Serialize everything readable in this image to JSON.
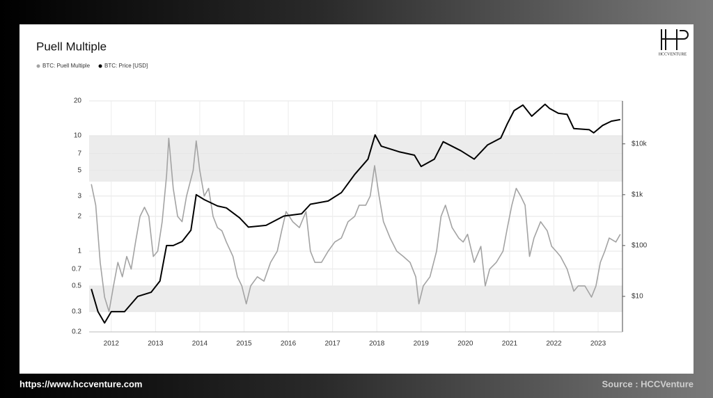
{
  "brand": "HCCVENTURE",
  "footer": {
    "url": "https://www.hccventure.com",
    "source": "Source : HCCVenture"
  },
  "chart_data": {
    "type": "line",
    "title": "Puell Multiple",
    "log_scale": true,
    "grid": true,
    "bands": [
      [
        0.3,
        0.5
      ],
      [
        4,
        10
      ]
    ],
    "xlim": [
      2011.5,
      2023.55
    ],
    "xticks": [
      2012,
      2013,
      2014,
      2015,
      2016,
      2017,
      2018,
      2019,
      2020,
      2021,
      2022,
      2023
    ],
    "ylim": [
      0.2,
      20
    ],
    "yticks": [
      0.2,
      0.3,
      0.5,
      0.7,
      1,
      2,
      3,
      5,
      7,
      10,
      20
    ],
    "y2lim": [
      2,
      70000
    ],
    "y2ticks": [
      {
        "value": 10,
        "label": "$10"
      },
      {
        "value": 100,
        "label": "$100"
      },
      {
        "value": 1000,
        "label": "$1k"
      },
      {
        "value": 10000,
        "label": "$10k"
      }
    ],
    "series": [
      {
        "name": "BTC: Puell Multiple",
        "color": "#a3a3a3",
        "x": [
          2011.55,
          2011.65,
          2011.75,
          2011.85,
          2011.95,
          2012.05,
          2012.15,
          2012.25,
          2012.35,
          2012.45,
          2012.55,
          2012.65,
          2012.75,
          2012.85,
          2012.95,
          2013.05,
          2013.15,
          2013.25,
          2013.3,
          2013.4,
          2013.5,
          2013.6,
          2013.7,
          2013.85,
          2013.92,
          2014.0,
          2014.1,
          2014.2,
          2014.3,
          2014.4,
          2014.5,
          2014.6,
          2014.75,
          2014.85,
          2014.95,
          2015.05,
          2015.15,
          2015.3,
          2015.45,
          2015.6,
          2015.75,
          2015.85,
          2015.95,
          2016.1,
          2016.25,
          2016.4,
          2016.5,
          2016.6,
          2016.75,
          2016.9,
          2017.05,
          2017.2,
          2017.35,
          2017.5,
          2017.6,
          2017.75,
          2017.85,
          2017.95,
          2018.05,
          2018.15,
          2018.3,
          2018.45,
          2018.6,
          2018.75,
          2018.88,
          2018.95,
          2019.05,
          2019.2,
          2019.35,
          2019.45,
          2019.55,
          2019.7,
          2019.85,
          2019.95,
          2020.05,
          2020.2,
          2020.35,
          2020.45,
          2020.55,
          2020.7,
          2020.85,
          2020.95,
          2021.05,
          2021.15,
          2021.25,
          2021.35,
          2021.45,
          2021.55,
          2021.7,
          2021.85,
          2021.95,
          2022.05,
          2022.15,
          2022.3,
          2022.45,
          2022.55,
          2022.7,
          2022.85,
          2022.95,
          2023.05,
          2023.15,
          2023.25,
          2023.4,
          2023.5
        ],
        "values": [
          3.8,
          2.5,
          0.8,
          0.4,
          0.3,
          0.5,
          0.8,
          0.6,
          0.9,
          0.7,
          1.2,
          2.0,
          2.4,
          2.0,
          0.9,
          1.0,
          1.8,
          4.5,
          9.5,
          3.5,
          2.0,
          1.8,
          3.0,
          5.0,
          9.0,
          5.0,
          3.0,
          3.5,
          2.0,
          1.6,
          1.5,
          1.2,
          0.9,
          0.6,
          0.5,
          0.35,
          0.5,
          0.6,
          0.55,
          0.8,
          1.0,
          1.5,
          2.2,
          1.8,
          1.6,
          2.2,
          1.0,
          0.8,
          0.8,
          1.0,
          1.2,
          1.3,
          1.8,
          2.0,
          2.5,
          2.5,
          3.0,
          5.5,
          3.0,
          1.8,
          1.3,
          1.0,
          0.9,
          0.8,
          0.6,
          0.35,
          0.5,
          0.6,
          1.0,
          2.0,
          2.5,
          1.6,
          1.3,
          1.2,
          1.4,
          0.8,
          1.1,
          0.5,
          0.7,
          0.8,
          1.0,
          1.6,
          2.5,
          3.5,
          3.0,
          2.5,
          0.9,
          1.3,
          1.8,
          1.5,
          1.1,
          1.0,
          0.9,
          0.7,
          0.45,
          0.5,
          0.5,
          0.4,
          0.5,
          0.8,
          1.0,
          1.3,
          1.2,
          1.4
        ]
      },
      {
        "name": "BTC: Price [USD]",
        "color": "#000000",
        "axis": "y2",
        "x": [
          2011.55,
          2011.7,
          2011.85,
          2012.0,
          2012.3,
          2012.6,
          2012.9,
          2013.1,
          2013.25,
          2013.4,
          2013.6,
          2013.8,
          2013.92,
          2014.1,
          2014.4,
          2014.6,
          2014.9,
          2015.1,
          2015.5,
          2015.9,
          2016.3,
          2016.5,
          2016.9,
          2017.2,
          2017.5,
          2017.8,
          2017.96,
          2018.1,
          2018.5,
          2018.85,
          2019.0,
          2019.3,
          2019.5,
          2019.9,
          2020.2,
          2020.5,
          2020.8,
          2020.95,
          2021.1,
          2021.3,
          2021.5,
          2021.8,
          2021.9,
          2022.1,
          2022.3,
          2022.45,
          2022.8,
          2022.9,
          2023.1,
          2023.3,
          2023.5
        ],
        "values": [
          14,
          5,
          3,
          5,
          5,
          10,
          12,
          20,
          100,
          100,
          120,
          200,
          1000,
          800,
          600,
          550,
          350,
          230,
          250,
          380,
          420,
          650,
          750,
          1100,
          2500,
          5000,
          15000,
          9000,
          7000,
          6000,
          3600,
          5000,
          11000,
          7300,
          5000,
          9500,
          13000,
          25000,
          45000,
          58000,
          35000,
          60000,
          50000,
          40000,
          38000,
          20000,
          19000,
          16500,
          23000,
          28000,
          30000
        ]
      }
    ]
  }
}
